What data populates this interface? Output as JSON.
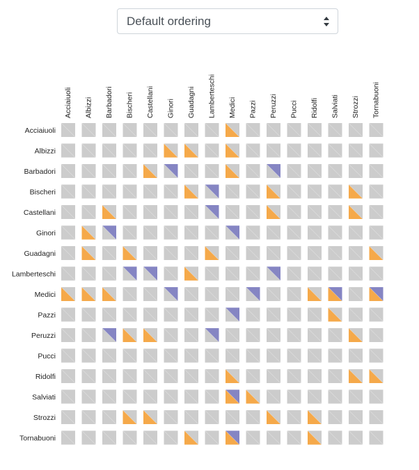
{
  "ordering_select": {
    "value": "Default ordering",
    "icon": "updown-arrows-icon"
  },
  "colors": {
    "cell": "#cccccc",
    "orange": "#f5a94a",
    "purple": "#8585c3"
  },
  "chart_data": {
    "type": "heatmap",
    "families": [
      "Acciaiuoli",
      "Albizzi",
      "Barbadori",
      "Bischeri",
      "Castellani",
      "Ginori",
      "Guadagni",
      "Lamberteschi",
      "Medici",
      "Pazzi",
      "Peruzzi",
      "Pucci",
      "Ridolfi",
      "Salviati",
      "Strozzi",
      "Tornabuoni"
    ],
    "orange_links": [
      [
        0,
        8
      ],
      [
        1,
        5
      ],
      [
        1,
        6
      ],
      [
        1,
        8
      ],
      [
        2,
        4
      ],
      [
        2,
        8
      ],
      [
        3,
        6
      ],
      [
        3,
        10
      ],
      [
        3,
        14
      ],
      [
        4,
        2
      ],
      [
        4,
        10
      ],
      [
        4,
        14
      ],
      [
        5,
        1
      ],
      [
        6,
        1
      ],
      [
        6,
        3
      ],
      [
        6,
        7
      ],
      [
        6,
        15
      ],
      [
        7,
        6
      ],
      [
        8,
        0
      ],
      [
        8,
        1
      ],
      [
        8,
        2
      ],
      [
        8,
        12
      ],
      [
        8,
        13
      ],
      [
        8,
        15
      ],
      [
        9,
        13
      ],
      [
        10,
        3
      ],
      [
        10,
        4
      ],
      [
        10,
        14
      ],
      [
        12,
        8
      ],
      [
        12,
        14
      ],
      [
        12,
        15
      ],
      [
        13,
        8
      ],
      [
        13,
        9
      ],
      [
        14,
        3
      ],
      [
        14,
        4
      ],
      [
        14,
        10
      ],
      [
        14,
        12
      ],
      [
        15,
        6
      ],
      [
        15,
        8
      ],
      [
        15,
        12
      ]
    ],
    "purple_links": [
      [
        2,
        5
      ],
      [
        2,
        10
      ],
      [
        3,
        7
      ],
      [
        4,
        7
      ],
      [
        5,
        2
      ],
      [
        5,
        8
      ],
      [
        7,
        3
      ],
      [
        7,
        4
      ],
      [
        7,
        10
      ],
      [
        8,
        5
      ],
      [
        8,
        9
      ],
      [
        8,
        13
      ],
      [
        8,
        15
      ],
      [
        9,
        8
      ],
      [
        10,
        2
      ],
      [
        10,
        7
      ],
      [
        13,
        8
      ],
      [
        15,
        8
      ]
    ]
  }
}
